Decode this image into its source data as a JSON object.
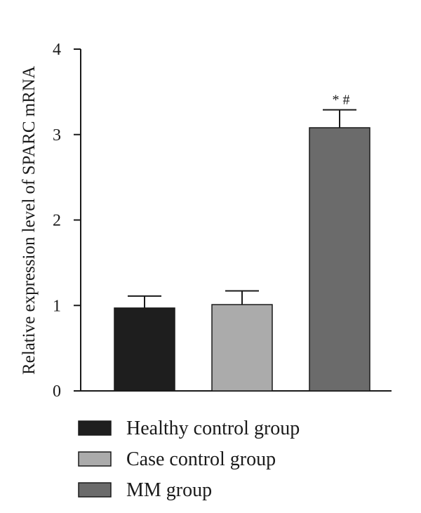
{
  "chart_data": {
    "type": "bar",
    "categories": [
      "Healthy control group",
      "Case control group",
      "MM group"
    ],
    "values": [
      0.97,
      1.01,
      3.08
    ],
    "error": [
      0.14,
      0.16,
      0.21
    ],
    "colors": [
      "#1e1e1e",
      "#ababab",
      "#6b6b6b"
    ],
    "annotations": [
      {
        "category": "MM group",
        "text": "* #"
      }
    ],
    "title": "",
    "xlabel": "",
    "ylabel": "Relative expression level of SPARC mRNA",
    "ylim": [
      0,
      4
    ],
    "yticks": [
      0,
      1,
      2,
      3,
      4
    ],
    "grid": false,
    "legend": {
      "placement": "bottom-left",
      "entries": [
        "Healthy control group",
        "Case control group",
        "MM group"
      ]
    }
  }
}
